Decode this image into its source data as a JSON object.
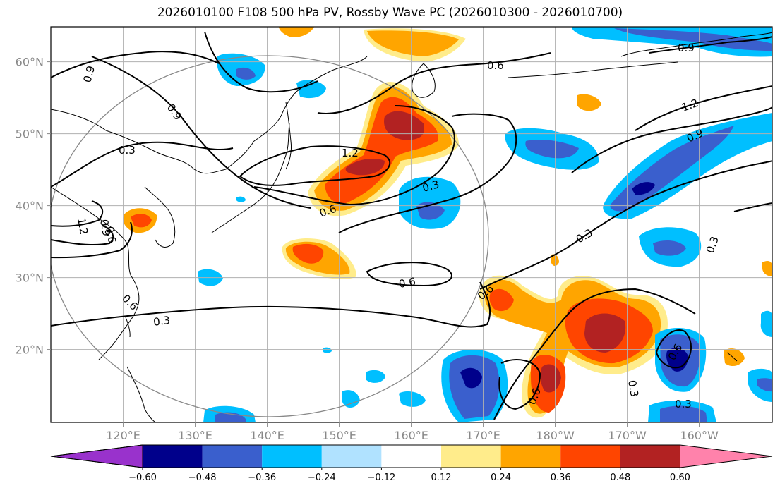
{
  "title": "2026010100 F108 500 hPa PV, Rossby Wave PC (2026010300 - 2026010700)",
  "map": {
    "lon_labels": [
      "120°E",
      "130°E",
      "140°E",
      "150°E",
      "160°E",
      "170°E",
      "180°W",
      "170°W",
      "160°W"
    ],
    "lat_labels": [
      "60°N",
      "50°N",
      "40°N",
      "30°N",
      "20°N"
    ],
    "contour_labels": [
      "0.6",
      "0.9",
      "0.3",
      "1.2",
      "0.6",
      "0.3",
      "0.6",
      "0.9",
      "1.2",
      "0.9",
      "0.3",
      "0.3",
      "0.6",
      "0.6",
      "0.6",
      "0.3",
      "0.3",
      "0.6",
      "0.3",
      "1.2",
      "0.9",
      "0.6",
      "0.9"
    ]
  },
  "colorbar": {
    "ticks": [
      "−0.60",
      "−0.48",
      "−0.36",
      "−0.24",
      "−0.12",
      "0.12",
      "0.24",
      "0.36",
      "0.48",
      "0.60"
    ],
    "colors": [
      "#9932cc",
      "#00008b",
      "#3a5fcd",
      "#00bfff",
      "#b0e2ff",
      "#ffffff",
      "#ffec8b",
      "#ffa500",
      "#ff4500",
      "#b22222",
      "#ff82ab"
    ]
  },
  "palette": {
    "light_blue": "#b0e2ff",
    "sky": "#00bfff",
    "royal": "#3a5fcd",
    "navy": "#00008b",
    "yellow": "#ffec8b",
    "orange": "#ffa500",
    "red_orange": "#ff4500",
    "dark_red": "#b22222",
    "purple": "#9932cc",
    "pink": "#ff82ab"
  }
}
